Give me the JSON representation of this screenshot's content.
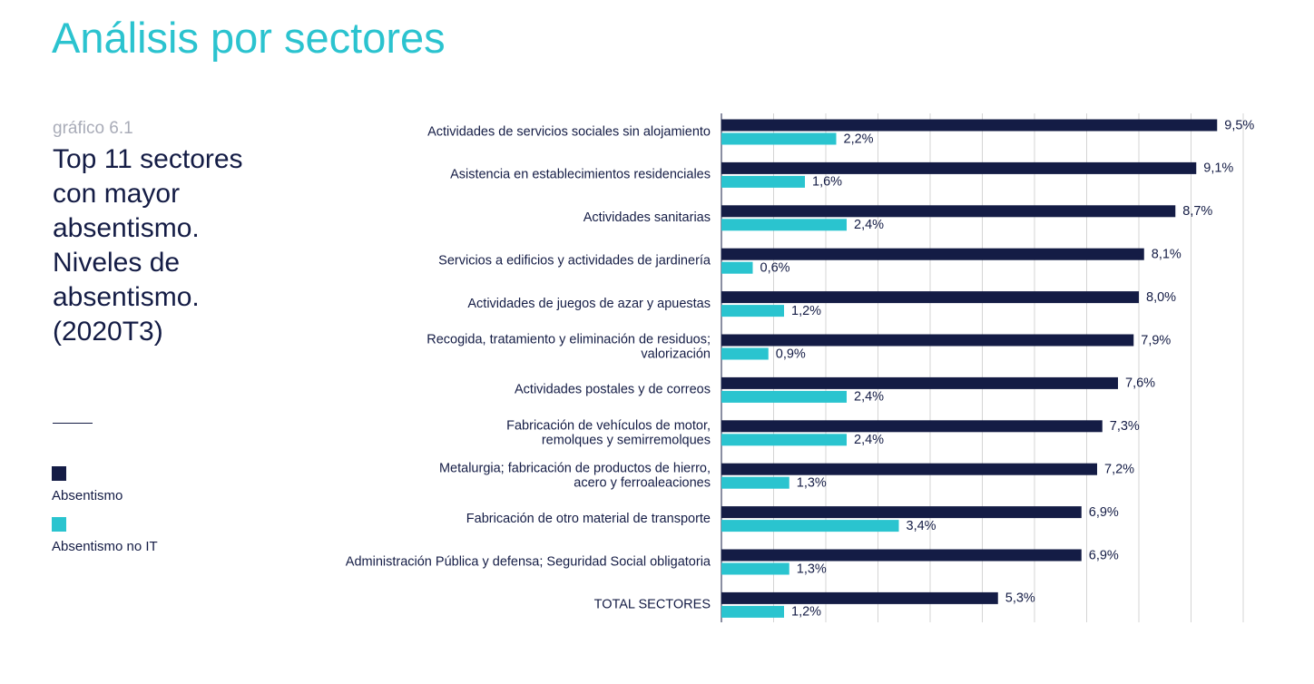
{
  "page_title": "Análisis por sectores",
  "chart_data": {
    "type": "hbar",
    "label": "gráfico 6.1",
    "title": "Top 11 sectores con mayor absentismo. Niveles de absentismo. (2020T3)",
    "categories": [
      "Actividades de servicios sociales sin alojamiento",
      "Asistencia en establecimientos residenciales",
      "Actividades sanitarias",
      "Servicios a edificios y actividades de jardinería",
      "Actividades de juegos de azar y apuestas",
      "Recogida, tratamiento y eliminación de residuos;\nvalorización",
      "Actividades postales y de correos",
      "Fabricación de vehículos de motor,\nremolques y semirremolques",
      "Metalurgia; fabricación de productos de hierro,\nacero y ferroaleaciones",
      "Fabricación de otro material de transporte",
      "Administración Pública y defensa; Seguridad Social obligatoria",
      "TOTAL SECTORES"
    ],
    "series": [
      {
        "name": "Absentismo",
        "color": "#141c45",
        "values": [
          9.5,
          9.1,
          8.7,
          8.1,
          8.0,
          7.9,
          7.6,
          7.3,
          7.2,
          6.9,
          6.9,
          5.3
        ],
        "value_labels": [
          "9,5%",
          "9,1%",
          "8,7%",
          "8,1%",
          "8,0%",
          "7,9%",
          "7,6%",
          "7,3%",
          "7,2%",
          "6,9%",
          "6,9%",
          "5,3%"
        ]
      },
      {
        "name": "Absentismo no IT",
        "color": "#2ac4cf",
        "values": [
          2.2,
          1.6,
          2.4,
          0.6,
          1.2,
          0.9,
          2.4,
          2.4,
          1.3,
          3.4,
          1.3,
          1.2
        ],
        "value_labels": [
          "2,2%",
          "1,6%",
          "2,4%",
          "0,6%",
          "1,2%",
          "0,9%",
          "2,4%",
          "2,4%",
          "1,3%",
          "3,4%",
          "1,3%",
          "1,2%"
        ]
      }
    ],
    "xlim": [
      0,
      10
    ],
    "xticks": [
      0,
      1,
      2,
      3,
      4,
      5,
      6,
      7,
      8,
      9,
      10
    ],
    "grid": true
  }
}
